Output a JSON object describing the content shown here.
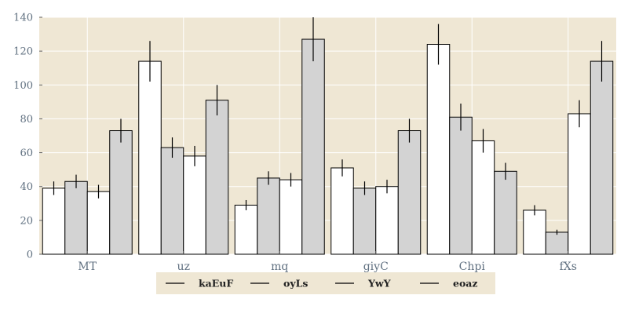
{
  "chart_data": {
    "type": "bar",
    "title": "",
    "xlabel": "",
    "ylabel": "",
    "ylim": [
      0,
      140
    ],
    "yticks": [
      0,
      20,
      40,
      60,
      80,
      100,
      120,
      140
    ],
    "grid": true,
    "legend_position": "bottom-center",
    "categories": [
      "MT",
      "uz",
      "mq",
      "giyC",
      "Chpi",
      "fXs"
    ],
    "series": [
      {
        "name": "kaEuF",
        "color": "#ffffff",
        "values": [
          39,
          114,
          29,
          51,
          124,
          26
        ],
        "errors": [
          4,
          12,
          3,
          5,
          12,
          3
        ]
      },
      {
        "name": "oyLs",
        "color": "#d3d3d3",
        "values": [
          43,
          63,
          45,
          39,
          81,
          13
        ],
        "errors": [
          4,
          6,
          4,
          4,
          8,
          1.5
        ]
      },
      {
        "name": "YwY",
        "color": "#ffffff",
        "values": [
          37,
          58,
          44,
          40,
          67,
          83
        ],
        "errors": [
          4,
          6,
          4,
          4,
          7,
          8
        ]
      },
      {
        "name": "eoaz",
        "color": "#d3d3d3",
        "values": [
          73,
          91,
          127,
          73,
          49,
          114
        ],
        "errors": [
          7,
          9,
          13,
          7,
          5,
          12
        ]
      }
    ],
    "colors": {
      "plot_background": "#efe7d4",
      "tick_label": "#607080",
      "grid": "#ffffff",
      "legend_background": "#efe7d4"
    }
  }
}
